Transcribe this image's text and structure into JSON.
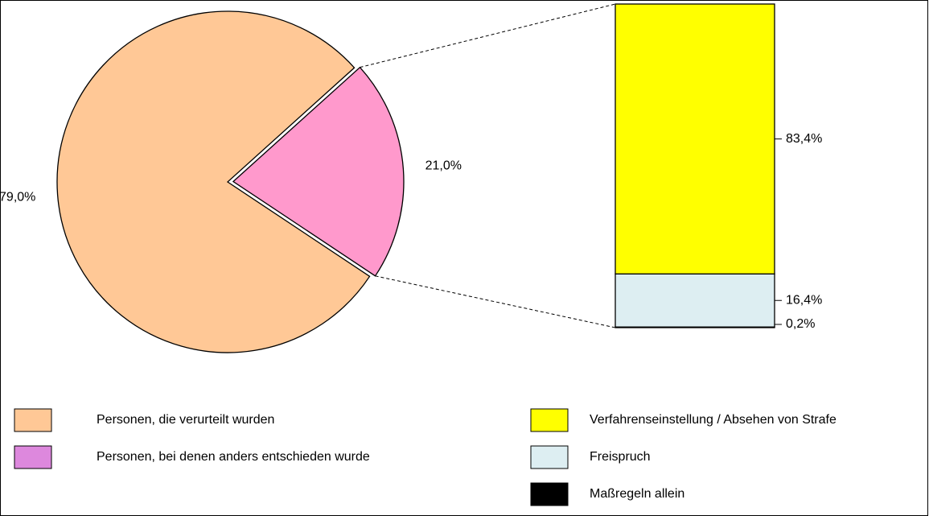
{
  "chart_data": {
    "type": "bar-of-pie",
    "pie": {
      "categories": [
        "Personen, die verurteilt wurden",
        "Personen, bei denen anders entschieden wurde"
      ],
      "values": [
        79.0,
        21.0
      ],
      "value_labels": [
        "79,0%",
        "21,0%"
      ],
      "colors": [
        "#ffc896",
        "#ff99cc"
      ],
      "legend_colors": [
        "#ffc896",
        "#dd88dd"
      ]
    },
    "bar": {
      "categories": [
        "Verfahrenseinstellung / Absehen von Strafe",
        "Freispruch",
        "Maßregeln allein"
      ],
      "values": [
        83.4,
        16.4,
        0.2
      ],
      "value_labels": [
        "83,4%",
        "16,4%",
        "0,2%"
      ],
      "colors": [
        "#ffff00",
        "#ddeef2",
        "#000000"
      ]
    }
  }
}
